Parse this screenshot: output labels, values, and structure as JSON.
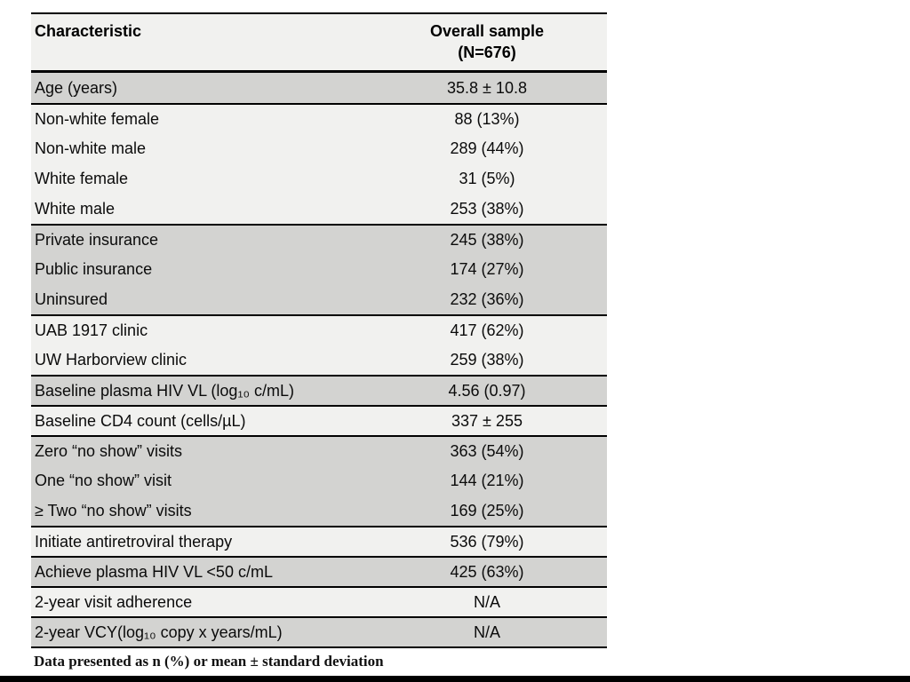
{
  "colors": {
    "page": "#ffffff",
    "row_shaded": "#d3d3d1",
    "row_light": "#f1f1ef",
    "rule": "#000000",
    "bottom_bar": "#000000"
  },
  "table": {
    "header": {
      "characteristic": "Characteristic",
      "overall_line1": "Overall sample",
      "overall_line2": "(N=676)"
    },
    "groups": [
      {
        "shaded": true,
        "rows": [
          {
            "label": "Age (years)",
            "value": "35.8 ± 10.8"
          }
        ]
      },
      {
        "shaded": false,
        "rows": [
          {
            "label": "Non-white female",
            "value": "88 (13%)"
          },
          {
            "label": "Non-white male",
            "value": "289 (44%)"
          },
          {
            "label": "White female",
            "value": "31 (5%)"
          },
          {
            "label": "White male",
            "value": "253 (38%)"
          }
        ]
      },
      {
        "shaded": true,
        "rows": [
          {
            "label": "Private insurance",
            "value": "245 (38%)"
          },
          {
            "label": "Public insurance",
            "value": "174 (27%)"
          },
          {
            "label": "Uninsured",
            "value": "232 (36%)"
          }
        ]
      },
      {
        "shaded": false,
        "rows": [
          {
            "label": "UAB 1917 clinic",
            "value": "417 (62%)"
          },
          {
            "label": "UW Harborview clinic",
            "value": "259 (38%)"
          }
        ]
      },
      {
        "shaded": true,
        "rows": [
          {
            "label": "Baseline plasma HIV VL (log₁₀ c/mL)",
            "value": "4.56 (0.97)"
          }
        ]
      },
      {
        "shaded": false,
        "rows": [
          {
            "label": "Baseline CD4 count (cells/µL)",
            "value": "337 ± 255"
          }
        ]
      },
      {
        "shaded": true,
        "rows": [
          {
            "label": "Zero “no show” visits",
            "value": "363 (54%)"
          },
          {
            "label": "One “no show” visit",
            "value": "144 (21%)"
          },
          {
            "label": "≥ Two “no show” visits",
            "value": "169 (25%)"
          }
        ]
      },
      {
        "shaded": false,
        "rows": [
          {
            "label": "Initiate antiretroviral therapy",
            "value": "536 (79%)"
          }
        ]
      },
      {
        "shaded": true,
        "rows": [
          {
            "label": "Achieve plasma HIV VL <50 c/mL",
            "value": "425 (63%)"
          }
        ]
      },
      {
        "shaded": false,
        "rows": [
          {
            "label": "2-year visit adherence",
            "value": "N/A"
          }
        ]
      },
      {
        "shaded": true,
        "rows": [
          {
            "label": "2-year VCY(log₁₀ copy x years/mL)",
            "value": "N/A"
          }
        ]
      }
    ],
    "footnote": "Data presented as n (%) or mean ± standard deviation"
  }
}
